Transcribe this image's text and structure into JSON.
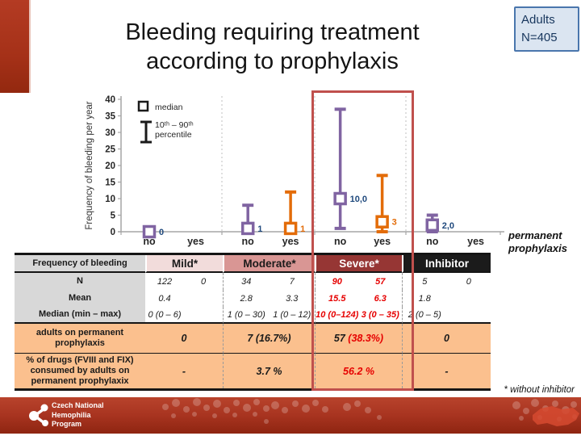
{
  "slide": {
    "title": "Bleeding requiring treatment\naccording to prophylaxis",
    "badge": "Adults\nN=405",
    "axis_note": "permanent\nprophylaxis",
    "footnote": "* without inhibitor"
  },
  "footer": {
    "org": "Czech National\nHemophilia\nProgram"
  },
  "colors": {
    "accent_bar": "#a53118",
    "badge_bg": "#dbe5f1",
    "badge_border": "#4a76ad",
    "badge_text": "#17365d",
    "highlight_box": "#c0504d",
    "series_no": "#8064A2",
    "series_yes": "#E36C09",
    "label_no": "#1F497D",
    "label_yes": "#E36C09",
    "red_values": "#e60000",
    "header_mild_bg": "#F2DCDB",
    "header_moderate_bg": "#D99694",
    "header_severe_bg": "#963634",
    "header_inhibitor_bg": "#1b1b1b",
    "orange_row_bg": "#fbc08e",
    "label_col_bg": "#d8d8d8"
  },
  "chart_data": {
    "type": "scatter",
    "title": "",
    "xlabel": "",
    "ylabel": "Frequency of bleeding per year",
    "ylim": [
      0,
      40
    ],
    "ytick_step": 5,
    "grid": "dashed vertical separators between severity groups",
    "legend_position": "top-left",
    "legend": [
      {
        "symbol": "open-square",
        "label": "median"
      },
      {
        "symbol": "I-bar",
        "label": "10ᵗʰ – 90ᵗʰ\npercentile"
      }
    ],
    "group_names": [
      "Mild",
      "Moderate",
      "Severe",
      "Inhibitor"
    ],
    "x_categories_per_group": [
      "no",
      "yes"
    ],
    "points": [
      {
        "group": "Mild",
        "prophylaxis": "no",
        "median": 0,
        "p10": 0,
        "p90": 0,
        "value_label": "0"
      },
      {
        "group": "Moderate",
        "prophylaxis": "no",
        "median": 1,
        "p10": 0,
        "p90": 8,
        "value_label": "1"
      },
      {
        "group": "Moderate",
        "prophylaxis": "yes",
        "median": 1,
        "p10": 0,
        "p90": 12,
        "value_label": "1"
      },
      {
        "group": "Severe",
        "prophylaxis": "no",
        "median": 10,
        "p10": 1,
        "p90": 37,
        "value_label": "10,0"
      },
      {
        "group": "Severe",
        "prophylaxis": "yes",
        "median": 3,
        "p10": 0,
        "p90": 17,
        "value_label": "3"
      },
      {
        "group": "Inhibitor",
        "prophylaxis": "no",
        "median": 2,
        "p10": 0,
        "p90": 5,
        "value_label": "2,0"
      }
    ]
  },
  "table": {
    "corner_label": "Frequency of bleeding",
    "row_labels": {
      "n": "N",
      "mean": "Mean",
      "median": "Median (min – max)",
      "adults": "adults on permanent\nprophylaxis",
      "pct": "% of drugs (FVIII and FIX)\nconsumed by adults on\npermanent prophylaxix"
    },
    "columns": [
      {
        "header": "Mild*",
        "header_bg": "#F2DCDB",
        "header_fg": "#1a1a1a",
        "highlight": false,
        "n": [
          "122",
          "0"
        ],
        "mean": [
          "0.4",
          ""
        ],
        "median": [
          "0 (0 – 6)",
          ""
        ],
        "adults": "0",
        "pct": "-"
      },
      {
        "header": "Moderate*",
        "header_bg": "#D99694",
        "header_fg": "#1a1a1a",
        "highlight": false,
        "n": [
          "34",
          "7"
        ],
        "mean": [
          "2.8",
          "3.3"
        ],
        "median": [
          "1 (0 – 30)",
          "1 (0 – 12)"
        ],
        "adults": "7 (16.7%)",
        "pct": "3.7 %"
      },
      {
        "header": "Severe*",
        "header_bg": "#963634",
        "header_fg": "#ffffff",
        "highlight": true,
        "n": [
          "90",
          "57"
        ],
        "mean": [
          "15.5",
          "6.3"
        ],
        "median": [
          "10 (0–124)",
          "3 (0 – 35)"
        ],
        "adults_parts": [
          "57",
          " (38.3%)"
        ],
        "adults": "57 (38.3%)",
        "pct": "56.2 %"
      },
      {
        "header": "Inhibitor",
        "header_bg": "#1b1b1b",
        "header_fg": "#ffffff",
        "highlight": false,
        "n": [
          "5",
          "0"
        ],
        "mean": [
          "1.8",
          ""
        ],
        "median": [
          "2 (0 – 5)",
          ""
        ],
        "adults": "0",
        "pct": "-"
      }
    ]
  }
}
